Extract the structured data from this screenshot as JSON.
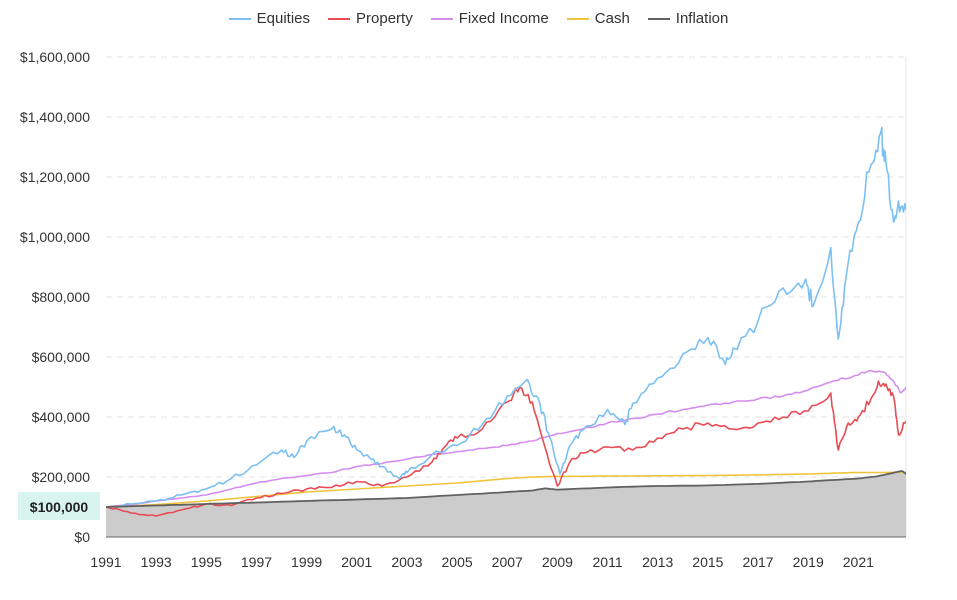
{
  "chart_data": {
    "type": "line",
    "title": "",
    "xlabel": "",
    "ylabel": "",
    "xlim": [
      1991,
      2022.9
    ],
    "ylim": [
      0,
      1600000
    ],
    "grid": true,
    "legend_position": "top-center",
    "x_ticks": [
      "1991",
      "1993",
      "1995",
      "1997",
      "1999",
      "2001",
      "2003",
      "2005",
      "2007",
      "2009",
      "2011",
      "2013",
      "2015",
      "2017",
      "2019",
      "2021"
    ],
    "y_ticks": [
      "$0",
      "$200,000",
      "$400,000",
      "$600,000",
      "$800,000",
      "$1,000,000",
      "$1,200,000",
      "$1,400,000",
      "$1,600,000"
    ],
    "y_tick_values": [
      0,
      200000,
      400000,
      600000,
      800000,
      1000000,
      1200000,
      1400000,
      1600000
    ],
    "highlight_label": "$100,000",
    "highlight_value": 100000,
    "series": [
      {
        "name": "Equities",
        "color": "#7cc0f2",
        "x": [
          1991,
          1992,
          1993,
          1994,
          1995,
          1996,
          1997,
          1998,
          1998.5,
          1999,
          2000,
          2000.5,
          2001,
          2001.5,
          2002,
          2002.7,
          2003,
          2004,
          2005,
          2006,
          2007,
          2007.8,
          2008.3,
          2008.7,
          2009.1,
          2009.5,
          2010,
          2011,
          2011.7,
          2012,
          2013,
          2014,
          2015,
          2015.7,
          2016,
          2017,
          2018,
          2018.9,
          2019.2,
          2019.9,
          2020.2,
          2020.5,
          2021,
          2021.5,
          2021.9,
          2022.1,
          2022.4,
          2022.6,
          2022.9
        ],
        "values": [
          100000,
          110000,
          120000,
          140000,
          160000,
          195000,
          240000,
          290000,
          265000,
          320000,
          360000,
          340000,
          290000,
          265000,
          235000,
          195000,
          215000,
          275000,
          305000,
          375000,
          470000,
          525000,
          445000,
          330000,
          210000,
          305000,
          355000,
          425000,
          375000,
          445000,
          530000,
          610000,
          665000,
          575000,
          630000,
          720000,
          830000,
          860000,
          770000,
          965000,
          660000,
          860000,
          1050000,
          1240000,
          1350000,
          1250000,
          1050000,
          1120000,
          1090000
        ]
      },
      {
        "name": "Property",
        "color": "#e84c55",
        "x": [
          1991,
          1991.5,
          1992,
          1993,
          1994,
          1995,
          1996,
          1997,
          1998,
          1999,
          2000,
          2001,
          2002,
          2003,
          2004,
          2004.5,
          2005,
          2006,
          2007,
          2007.5,
          2008,
          2008.5,
          2009,
          2009.5,
          2010,
          2011,
          2012,
          2013,
          2014,
          2015,
          2016,
          2017,
          2018,
          2019,
          2019.9,
          2020.2,
          2020.6,
          2021,
          2021.5,
          2021.8,
          2022.1,
          2022.4,
          2022.6,
          2022.9
        ],
        "values": [
          100000,
          92000,
          80000,
          70000,
          90000,
          110000,
          105000,
          130000,
          145000,
          160000,
          165000,
          185000,
          170000,
          200000,
          250000,
          300000,
          330000,
          360000,
          450000,
          500000,
          450000,
          300000,
          170000,
          250000,
          280000,
          300000,
          290000,
          330000,
          360000,
          380000,
          360000,
          380000,
          400000,
          420000,
          480000,
          290000,
          380000,
          400000,
          460000,
          520000,
          510000,
          470000,
          340000,
          385000
        ]
      },
      {
        "name": "Fixed Income",
        "color": "#d58ef0",
        "x": [
          1991,
          1992,
          1993,
          1994,
          1995,
          1996,
          1997,
          1998,
          1999,
          2000,
          2001,
          2002,
          2003,
          2004,
          2005,
          2006,
          2007,
          2008,
          2009,
          2010,
          2011,
          2012,
          2013,
          2014,
          2015,
          2016,
          2017,
          2018,
          2019,
          2020,
          2021,
          2021.5,
          2022,
          2022.4,
          2022.7,
          2022.9
        ],
        "values": [
          100000,
          108000,
          120000,
          130000,
          140000,
          160000,
          180000,
          195000,
          205000,
          215000,
          235000,
          245000,
          260000,
          275000,
          285000,
          295000,
          305000,
          320000,
          345000,
          360000,
          380000,
          395000,
          410000,
          425000,
          440000,
          450000,
          460000,
          470000,
          490000,
          520000,
          540000,
          555000,
          550000,
          520000,
          480000,
          500000
        ]
      },
      {
        "name": "Cash",
        "color": "#f0c43a",
        "x": [
          1991,
          1993,
          1995,
          1997,
          1999,
          2001,
          2003,
          2005,
          2007,
          2008,
          2009,
          2011,
          2013,
          2015,
          2017,
          2019,
          2020,
          2021,
          2022,
          2022.9
        ],
        "values": [
          100000,
          108000,
          120000,
          135000,
          150000,
          160000,
          170000,
          180000,
          195000,
          200000,
          202000,
          203000,
          204000,
          205000,
          207000,
          210000,
          213000,
          215000,
          215000,
          216000
        ]
      },
      {
        "name": "Inflation",
        "color": "#616161",
        "x": [
          1991,
          1993,
          1995,
          1997,
          1999,
          2001,
          2003,
          2005,
          2007,
          2008,
          2008.5,
          2009,
          2011,
          2013,
          2015,
          2017,
          2019,
          2020,
          2021,
          2021.8,
          2022.3,
          2022.6,
          2022.75,
          2022.9
        ],
        "values": [
          100000,
          105000,
          110000,
          115000,
          120000,
          125000,
          130000,
          140000,
          150000,
          155000,
          162000,
          158000,
          165000,
          170000,
          172000,
          177000,
          185000,
          190000,
          195000,
          203000,
          212000,
          218000,
          220000,
          210000
        ]
      }
    ]
  }
}
